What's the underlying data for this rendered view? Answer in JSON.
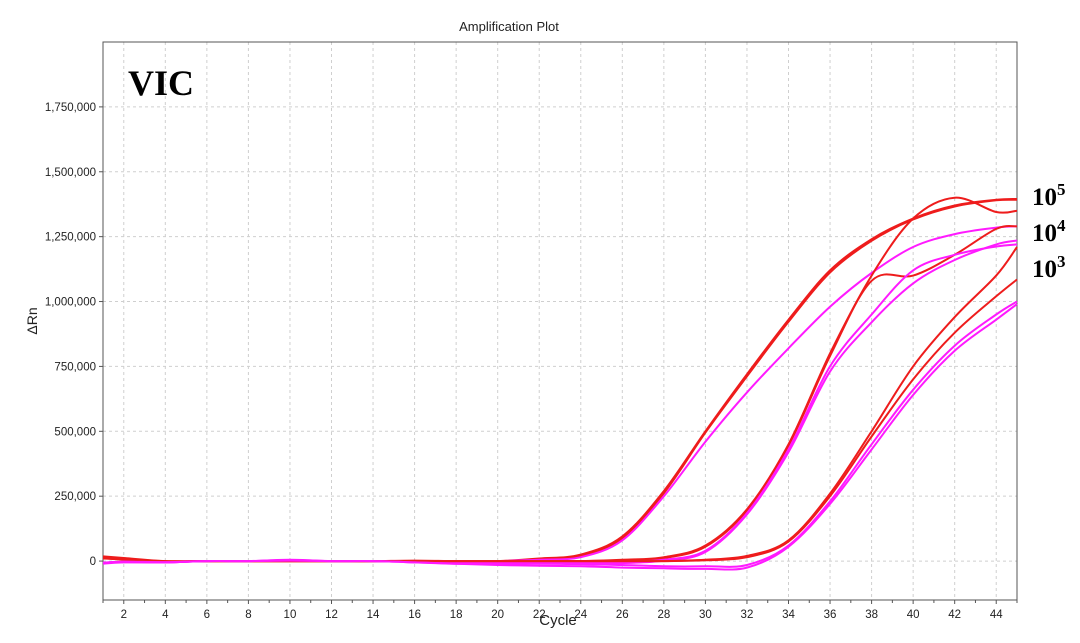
{
  "chart_data": {
    "type": "line",
    "title": "Amplification Plot",
    "xlabel": "Cycle",
    "ylabel": "ΔRn",
    "xlim": [
      1,
      45
    ],
    "ylim": [
      -150000,
      2000000
    ],
    "xticks": [
      2,
      4,
      6,
      8,
      10,
      12,
      14,
      16,
      18,
      20,
      22,
      24,
      26,
      28,
      30,
      32,
      34,
      36,
      38,
      40,
      42,
      44
    ],
    "yticks": [
      0,
      250000,
      500000,
      750000,
      1000000,
      1250000,
      1500000,
      1750000
    ],
    "ytick_labels": [
      "0",
      "250,000",
      "500,000",
      "750,000",
      "1,000,000",
      "1,250,000",
      "1,500,000",
      "1,750,000"
    ],
    "grid": true,
    "dye_label": "VIC",
    "concentration_labels": [
      {
        "base": "10",
        "exp": "5"
      },
      {
        "base": "10",
        "exp": "4"
      },
      {
        "base": "10",
        "exp": "3"
      }
    ],
    "colors": {
      "red": "#ee1c1c",
      "magenta": "#ff1aff",
      "grid": "#cfcfcf",
      "axis": "#555555"
    },
    "series": [
      {
        "color": "red",
        "x": [
          1,
          2,
          4,
          6,
          8,
          10,
          12,
          14,
          16,
          18,
          20,
          22,
          24,
          26,
          28,
          30,
          32,
          34,
          36,
          38,
          40,
          42,
          44,
          45
        ],
        "y": [
          18000,
          12000,
          0,
          0,
          0,
          0,
          0,
          0,
          0,
          0,
          0,
          10000,
          25000,
          95000,
          270000,
          500000,
          720000,
          930000,
          1120000,
          1240000,
          1320000,
          1370000,
          1392000,
          1395000
        ]
      },
      {
        "color": "red",
        "x": [
          1,
          2,
          4,
          6,
          8,
          10,
          12,
          14,
          16,
          18,
          20,
          22,
          24,
          26,
          28,
          30,
          32,
          34,
          36,
          38,
          40,
          42,
          44,
          45
        ],
        "y": [
          10000,
          8000,
          0,
          0,
          0,
          0,
          0,
          0,
          0,
          0,
          0,
          6000,
          20000,
          88000,
          262000,
          495000,
          712000,
          922000,
          1112000,
          1234000,
          1316000,
          1366000,
          1390000,
          1392000
        ]
      },
      {
        "color": "magenta",
        "x": [
          1,
          2,
          4,
          6,
          8,
          10,
          12,
          14,
          16,
          18,
          20,
          22,
          24,
          26,
          28,
          30,
          32,
          34,
          36,
          38,
          40,
          42,
          44,
          45
        ],
        "y": [
          -10000,
          -5000,
          -5000,
          0,
          0,
          5000,
          0,
          0,
          0,
          0,
          0,
          5000,
          15000,
          80000,
          250000,
          460000,
          650000,
          820000,
          980000,
          1110000,
          1210000,
          1260000,
          1285000,
          1290000
        ]
      },
      {
        "color": "red",
        "x": [
          1,
          2,
          4,
          6,
          8,
          10,
          12,
          14,
          16,
          18,
          20,
          22,
          24,
          26,
          28,
          30,
          32,
          34,
          36,
          38,
          40,
          42,
          44,
          45
        ],
        "y": [
          15000,
          8000,
          -3000,
          0,
          0,
          0,
          0,
          0,
          2000,
          0,
          0,
          0,
          0,
          5000,
          15000,
          60000,
          200000,
          450000,
          800000,
          1100000,
          1320000,
          1400000,
          1345000,
          1350000
        ]
      },
      {
        "color": "red",
        "x": [
          1,
          2,
          4,
          6,
          8,
          10,
          12,
          14,
          16,
          18,
          20,
          22,
          24,
          26,
          28,
          30,
          32,
          34,
          36,
          38,
          40,
          42,
          44,
          45
        ],
        "y": [
          12000,
          6000,
          -2000,
          0,
          0,
          0,
          0,
          0,
          0,
          0,
          0,
          0,
          0,
          3000,
          12000,
          55000,
          195000,
          445000,
          790000,
          1080000,
          1100000,
          1180000,
          1280000,
          1290000
        ]
      },
      {
        "color": "magenta",
        "x": [
          1,
          2,
          4,
          6,
          8,
          10,
          12,
          14,
          16,
          18,
          20,
          22,
          24,
          26,
          28,
          30,
          32,
          34,
          36,
          38,
          40,
          42,
          44,
          45
        ],
        "y": [
          -8000,
          -4000,
          -5000,
          0,
          0,
          3000,
          0,
          0,
          0,
          0,
          0,
          0,
          -3000,
          -3000,
          5000,
          40000,
          185000,
          430000,
          750000,
          950000,
          1120000,
          1180000,
          1212000,
          1220000
        ]
      },
      {
        "color": "magenta",
        "x": [
          1,
          2,
          4,
          6,
          8,
          10,
          12,
          14,
          16,
          18,
          20,
          22,
          24,
          26,
          28,
          30,
          32,
          34,
          36,
          38,
          40,
          42,
          44,
          45
        ],
        "y": [
          -6000,
          -3000,
          -4000,
          0,
          0,
          2000,
          0,
          0,
          -3000,
          -5000,
          -5000,
          -5000,
          -8000,
          -8000,
          2000,
          35000,
          180000,
          420000,
          730000,
          920000,
          1070000,
          1160000,
          1220000,
          1235000
        ]
      },
      {
        "color": "red",
        "x": [
          1,
          2,
          4,
          6,
          8,
          10,
          12,
          14,
          16,
          18,
          20,
          22,
          24,
          26,
          28,
          30,
          32,
          34,
          36,
          38,
          40,
          42,
          44,
          45
        ],
        "y": [
          14000,
          7000,
          -2000,
          0,
          0,
          0,
          0,
          0,
          0,
          0,
          0,
          0,
          0,
          0,
          0,
          5000,
          20000,
          80000,
          260000,
          500000,
          750000,
          940000,
          1100000,
          1210000
        ]
      },
      {
        "color": "red",
        "x": [
          1,
          2,
          4,
          6,
          8,
          10,
          12,
          14,
          16,
          18,
          20,
          22,
          24,
          26,
          28,
          30,
          32,
          34,
          36,
          38,
          40,
          42,
          44,
          45
        ],
        "y": [
          11000,
          5000,
          -2000,
          0,
          0,
          0,
          0,
          0,
          0,
          0,
          0,
          0,
          0,
          0,
          0,
          3000,
          15000,
          75000,
          250000,
          480000,
          700000,
          880000,
          1020000,
          1085000
        ]
      },
      {
        "color": "magenta",
        "x": [
          1,
          2,
          4,
          6,
          8,
          10,
          12,
          14,
          16,
          18,
          20,
          22,
          24,
          26,
          28,
          30,
          32,
          34,
          36,
          38,
          40,
          42,
          44,
          45
        ],
        "y": [
          -8000,
          -3000,
          -5000,
          0,
          0,
          3000,
          0,
          0,
          -5000,
          -10000,
          -10000,
          -10000,
          -12000,
          -15000,
          -20000,
          -20000,
          -15000,
          60000,
          230000,
          450000,
          660000,
          830000,
          950000,
          1000000
        ]
      },
      {
        "color": "magenta",
        "x": [
          1,
          2,
          4,
          6,
          8,
          10,
          12,
          14,
          16,
          18,
          20,
          22,
          24,
          26,
          28,
          30,
          32,
          34,
          36,
          38,
          40,
          42,
          44,
          45
        ],
        "y": [
          -7000,
          -3000,
          -4000,
          0,
          0,
          2000,
          0,
          0,
          -5000,
          -10000,
          -15000,
          -18000,
          -20000,
          -25000,
          -28000,
          -30000,
          -25000,
          55000,
          220000,
          430000,
          640000,
          810000,
          930000,
          990000
        ]
      }
    ]
  }
}
